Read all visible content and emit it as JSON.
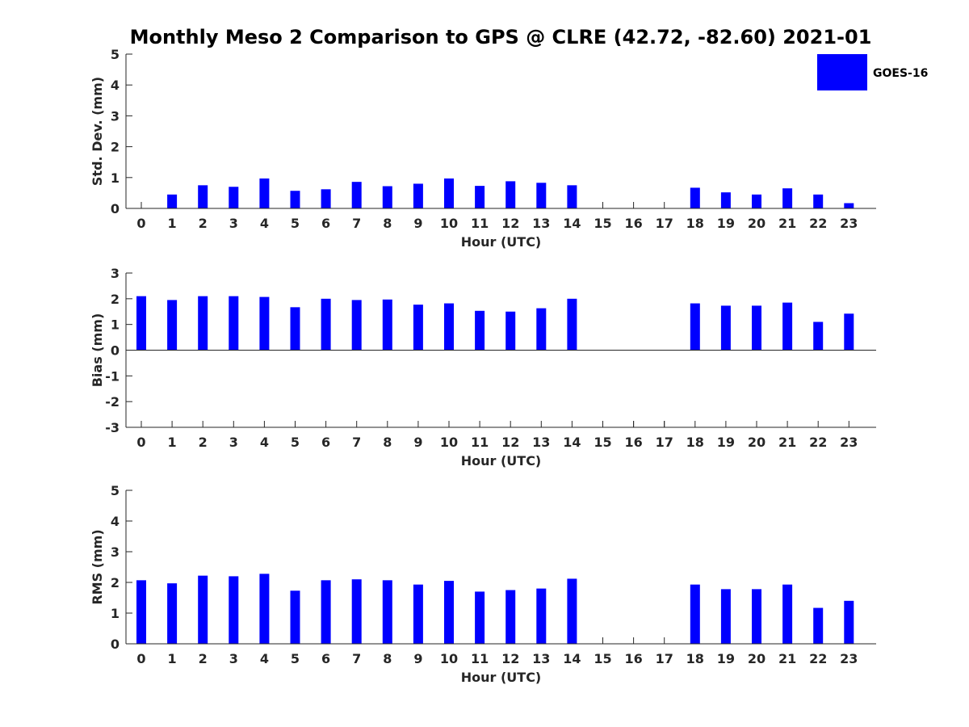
{
  "title": "Monthly Meso 2 Comparison to GPS @ CLRE (42.72, -82.60) 2021-01",
  "legend": {
    "label": "GOES-16",
    "color": "#0000ff"
  },
  "bar_color": "#0000ff",
  "chart_data": [
    {
      "type": "bar",
      "xlabel": "Hour (UTC)",
      "ylabel": "Std. Dev. (mm)",
      "ylim": [
        0,
        5
      ],
      "yticks": [
        0,
        1,
        2,
        3,
        4,
        5
      ],
      "categories": [
        "0",
        "1",
        "2",
        "3",
        "4",
        "5",
        "6",
        "7",
        "8",
        "9",
        "10",
        "11",
        "12",
        "13",
        "14",
        "15",
        "16",
        "17",
        "18",
        "19",
        "20",
        "21",
        "22",
        "23"
      ],
      "series": [
        {
          "name": "GOES-16",
          "values": [
            null,
            0.45,
            0.75,
            0.7,
            0.97,
            0.57,
            0.62,
            0.86,
            0.72,
            0.8,
            0.97,
            0.73,
            0.88,
            0.83,
            0.75,
            null,
            null,
            null,
            0.67,
            0.52,
            0.45,
            0.65,
            0.45,
            0.17
          ]
        }
      ]
    },
    {
      "type": "bar",
      "xlabel": "Hour (UTC)",
      "ylabel": "Bias (mm)",
      "ylim": [
        -3,
        3
      ],
      "yticks": [
        -3,
        -2,
        -1,
        0,
        1,
        2,
        3
      ],
      "categories": [
        "0",
        "1",
        "2",
        "3",
        "4",
        "5",
        "6",
        "7",
        "8",
        "9",
        "10",
        "11",
        "12",
        "13",
        "14",
        "15",
        "16",
        "17",
        "18",
        "19",
        "20",
        "21",
        "22",
        "23"
      ],
      "series": [
        {
          "name": "GOES-16",
          "values": [
            2.1,
            1.95,
            2.1,
            2.1,
            2.07,
            1.67,
            2.0,
            1.95,
            1.97,
            1.77,
            1.82,
            1.53,
            1.5,
            1.63,
            2.0,
            null,
            null,
            null,
            1.82,
            1.73,
            1.73,
            1.85,
            1.1,
            1.42
          ]
        }
      ]
    },
    {
      "type": "bar",
      "xlabel": "Hour (UTC)",
      "ylabel": "RMS (mm)",
      "ylim": [
        0,
        5
      ],
      "yticks": [
        0,
        1,
        2,
        3,
        4,
        5
      ],
      "categories": [
        "0",
        "1",
        "2",
        "3",
        "4",
        "5",
        "6",
        "7",
        "8",
        "9",
        "10",
        "11",
        "12",
        "13",
        "14",
        "15",
        "16",
        "17",
        "18",
        "19",
        "20",
        "21",
        "22",
        "23"
      ],
      "series": [
        {
          "name": "GOES-16",
          "values": [
            2.07,
            1.97,
            2.22,
            2.2,
            2.28,
            1.73,
            2.07,
            2.1,
            2.07,
            1.93,
            2.05,
            1.7,
            1.75,
            1.8,
            2.12,
            null,
            null,
            null,
            1.93,
            1.78,
            1.78,
            1.93,
            1.17,
            1.4
          ]
        }
      ]
    }
  ]
}
